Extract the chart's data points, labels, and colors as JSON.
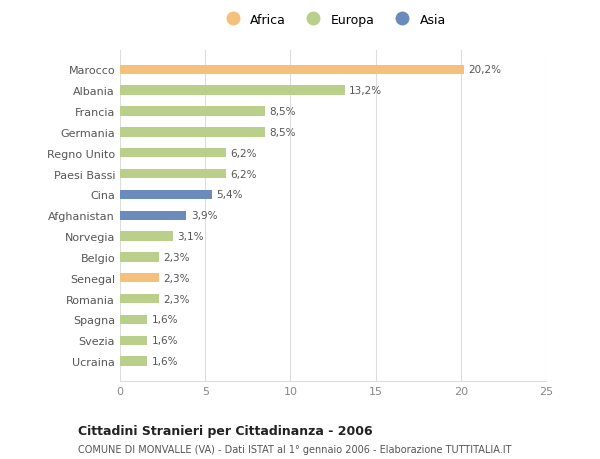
{
  "countries": [
    "Marocco",
    "Albania",
    "Francia",
    "Germania",
    "Regno Unito",
    "Paesi Bassi",
    "Cina",
    "Afghanistan",
    "Norvegia",
    "Belgio",
    "Senegal",
    "Romania",
    "Spagna",
    "Svezia",
    "Ucraina"
  ],
  "values": [
    20.2,
    13.2,
    8.5,
    8.5,
    6.2,
    6.2,
    5.4,
    3.9,
    3.1,
    2.3,
    2.3,
    2.3,
    1.6,
    1.6,
    1.6
  ],
  "labels": [
    "20,2%",
    "13,2%",
    "8,5%",
    "8,5%",
    "6,2%",
    "6,2%",
    "5,4%",
    "3,9%",
    "3,1%",
    "2,3%",
    "2,3%",
    "2,3%",
    "1,6%",
    "1,6%",
    "1,6%"
  ],
  "continents": [
    "Africa",
    "Europa",
    "Europa",
    "Europa",
    "Europa",
    "Europa",
    "Asia",
    "Asia",
    "Europa",
    "Europa",
    "Africa",
    "Europa",
    "Europa",
    "Europa",
    "Europa"
  ],
  "colors": {
    "Africa": "#F5C07A",
    "Europa": "#BACF8A",
    "Asia": "#6B8CBB"
  },
  "xlim": [
    0,
    25
  ],
  "xticks": [
    0,
    5,
    10,
    15,
    20,
    25
  ],
  "title": "Cittadini Stranieri per Cittadinanza - 2006",
  "subtitle": "COMUNE DI MONVALLE (VA) - Dati ISTAT al 1° gennaio 2006 - Elaborazione TUTTITALIA.IT",
  "background_color": "#ffffff",
  "grid_color": "#dddddd",
  "bar_height": 0.45
}
